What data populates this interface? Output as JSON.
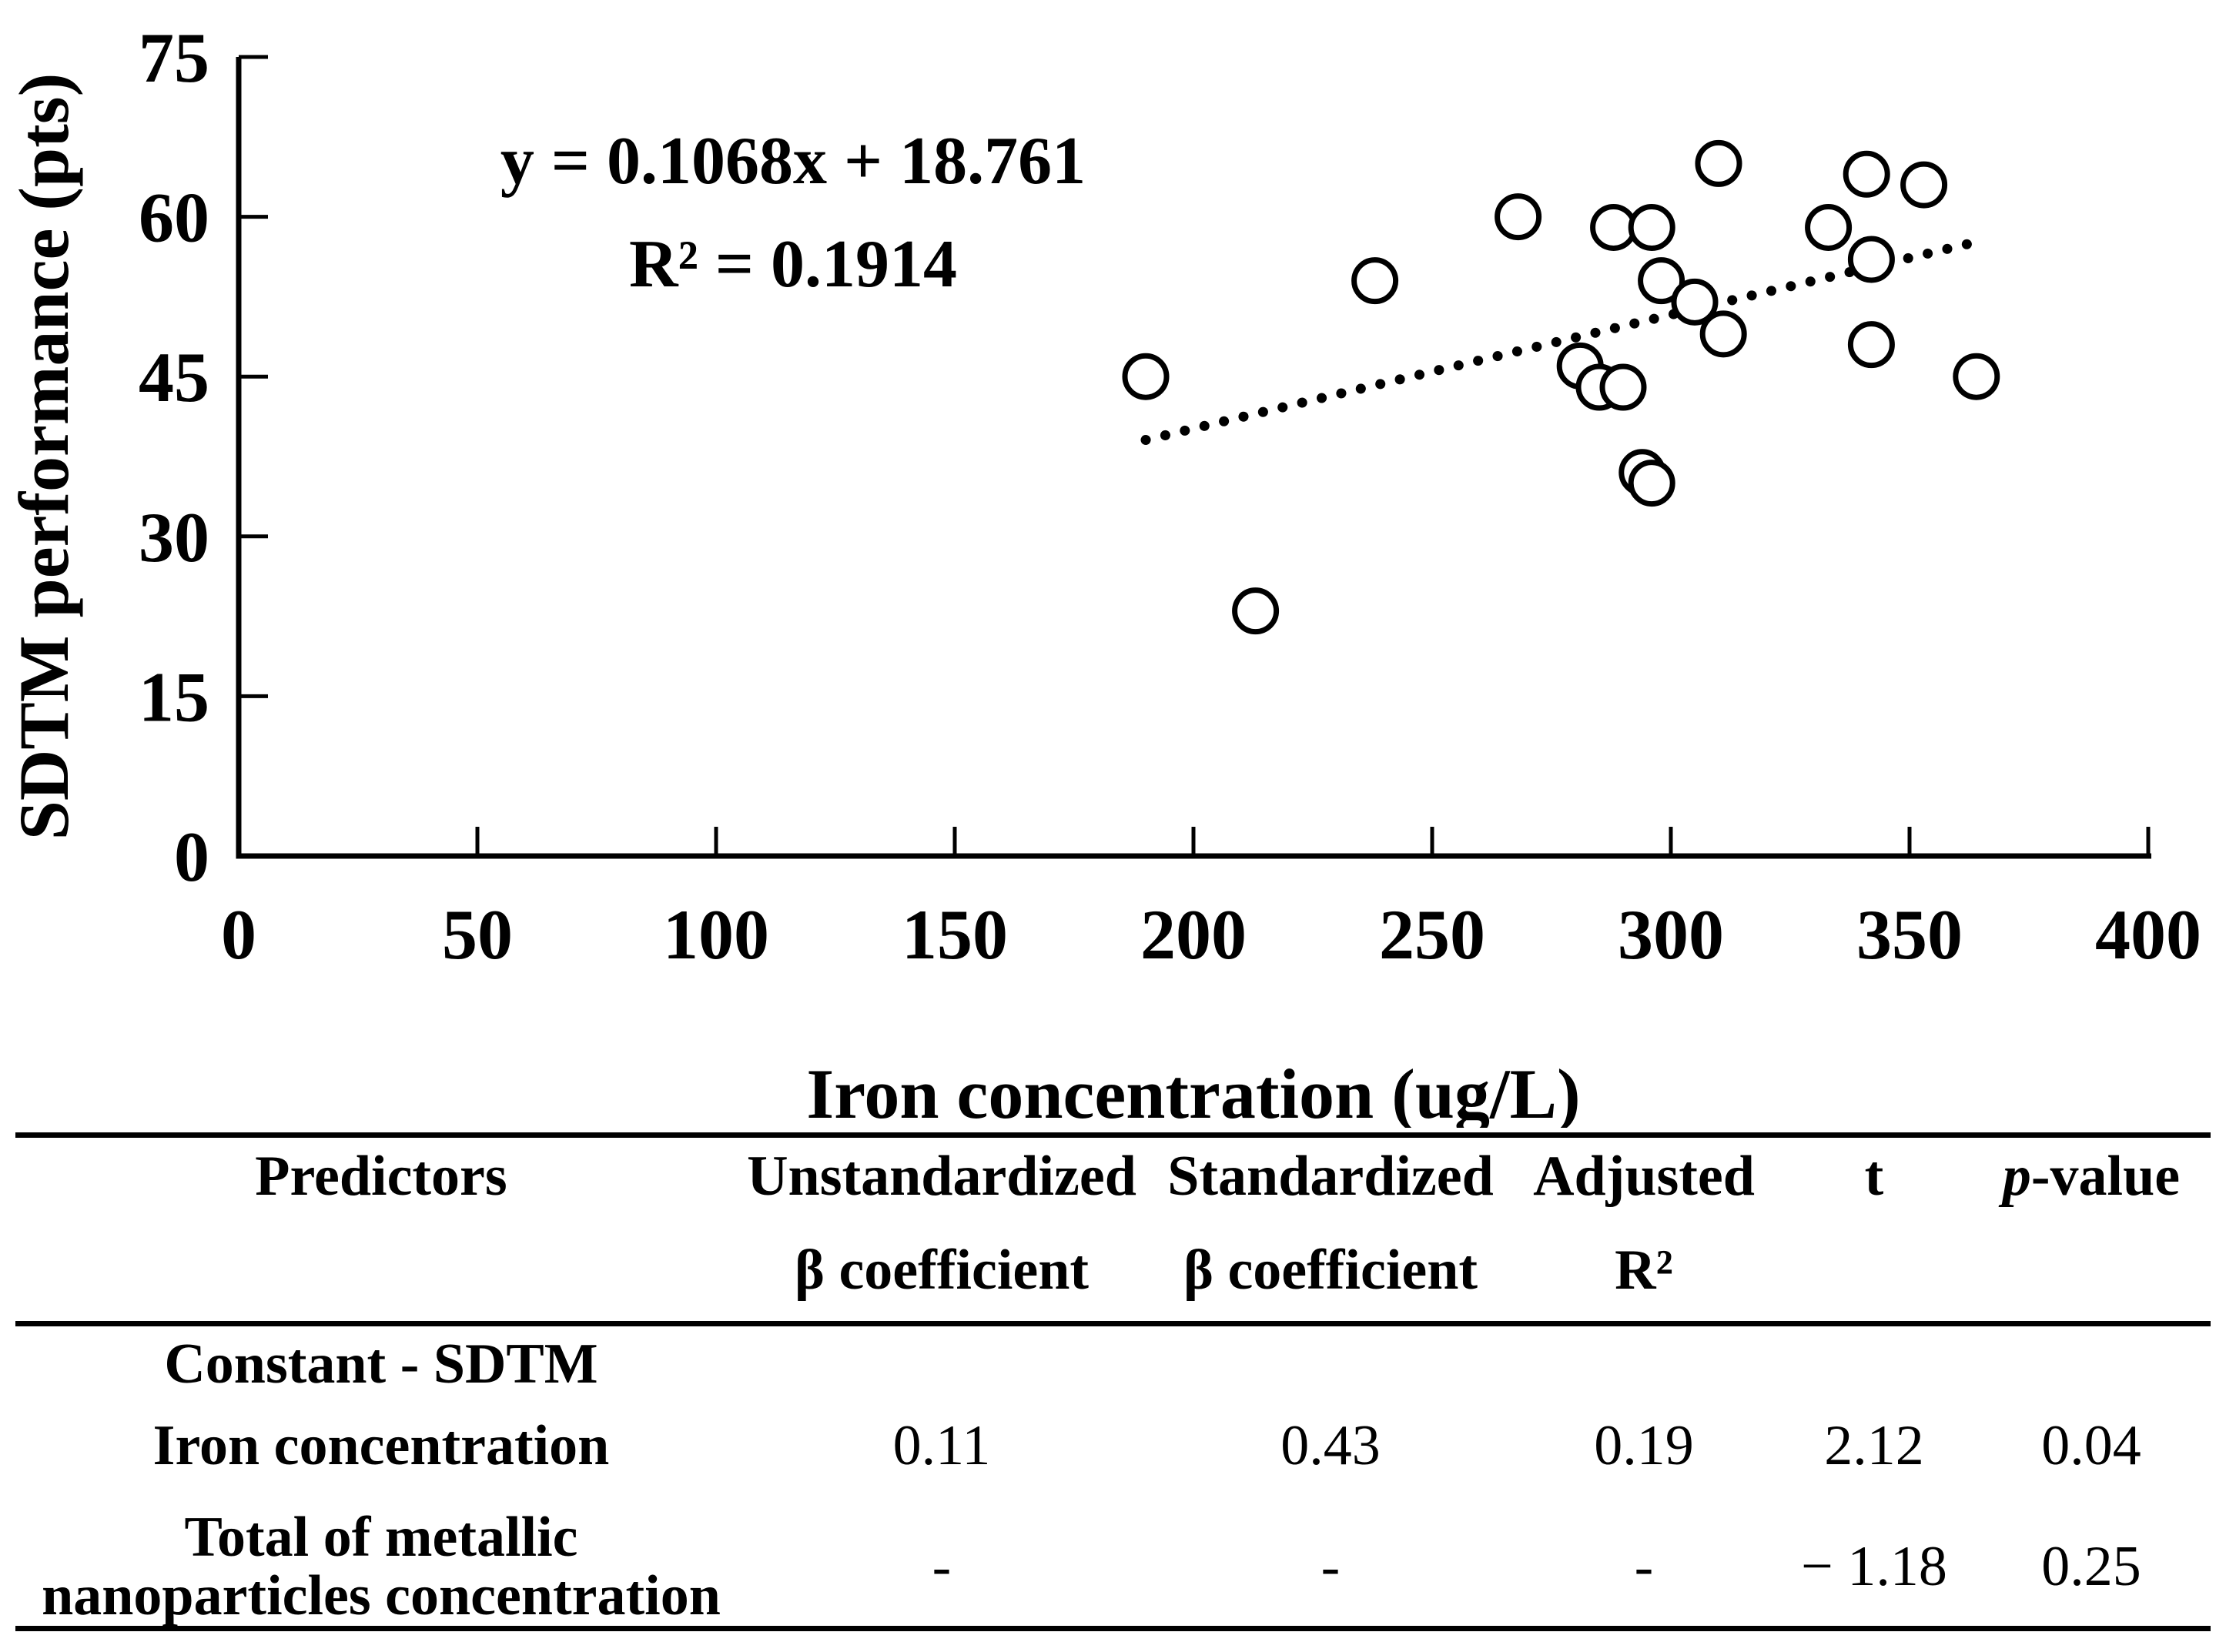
{
  "chart_data": {
    "type": "scatter",
    "title": "",
    "xlabel": "Iron concentration (ug/L)",
    "ylabel": "SDTM performance (pts)",
    "xlim": [
      0,
      400
    ],
    "ylim": [
      0,
      75
    ],
    "x_ticks": [
      0,
      50,
      100,
      150,
      200,
      250,
      300,
      350,
      400
    ],
    "y_ticks": [
      0,
      15,
      30,
      45,
      60,
      75
    ],
    "grid": "off",
    "marker": "open-circle",
    "equation": {
      "line1": "y = 0.1068x + 18.761",
      "line2": "R² = 0.1914"
    },
    "points": [
      [
        190,
        45
      ],
      [
        213,
        23
      ],
      [
        238,
        54
      ],
      [
        268,
        60
      ],
      [
        281,
        46
      ],
      [
        285,
        44
      ],
      [
        288,
        59
      ],
      [
        290,
        44
      ],
      [
        294,
        36
      ],
      [
        296,
        35
      ],
      [
        296,
        59
      ],
      [
        298,
        54
      ],
      [
        305,
        52
      ],
      [
        310,
        65
      ],
      [
        311,
        49
      ],
      [
        333,
        59
      ],
      [
        341,
        64
      ],
      [
        342,
        56
      ],
      [
        342,
        48
      ],
      [
        353,
        63
      ],
      [
        364,
        45
      ]
    ],
    "trendline": {
      "style": "dotted",
      "slope": 0.1068,
      "intercept": 18.761,
      "x_start": 190,
      "x_end": 363
    }
  },
  "table": {
    "headers": [
      {
        "line1": "Predictors",
        "line2": ""
      },
      {
        "line1": "Unstandardized",
        "line2": "β coefficient"
      },
      {
        "line1": "Standardized",
        "line2": "β coefficient"
      },
      {
        "line1": "Adjusted",
        "line2": "R²"
      },
      {
        "line1": "t",
        "line2": "",
        "italic": true
      },
      {
        "line1_parts": [
          {
            "text": "p",
            "italic": true
          },
          {
            "text": "-value"
          }
        ],
        "line2": ""
      }
    ],
    "rows": [
      {
        "label_lines": [
          "Constant - SDTM"
        ],
        "values": [
          "",
          "",
          "",
          "",
          ""
        ]
      },
      {
        "label_lines": [
          "Iron concentration"
        ],
        "values": [
          "0.11",
          "0.43",
          "0.19",
          "2.12",
          "0.04"
        ]
      },
      {
        "label_lines": [
          "Total of metallic",
          "nanoparticles concentration"
        ],
        "values": [
          "-",
          "-",
          "-",
          "− 1.18",
          "0.25"
        ]
      }
    ]
  },
  "colors": {
    "ink": "#000000",
    "background": "#ffffff"
  }
}
